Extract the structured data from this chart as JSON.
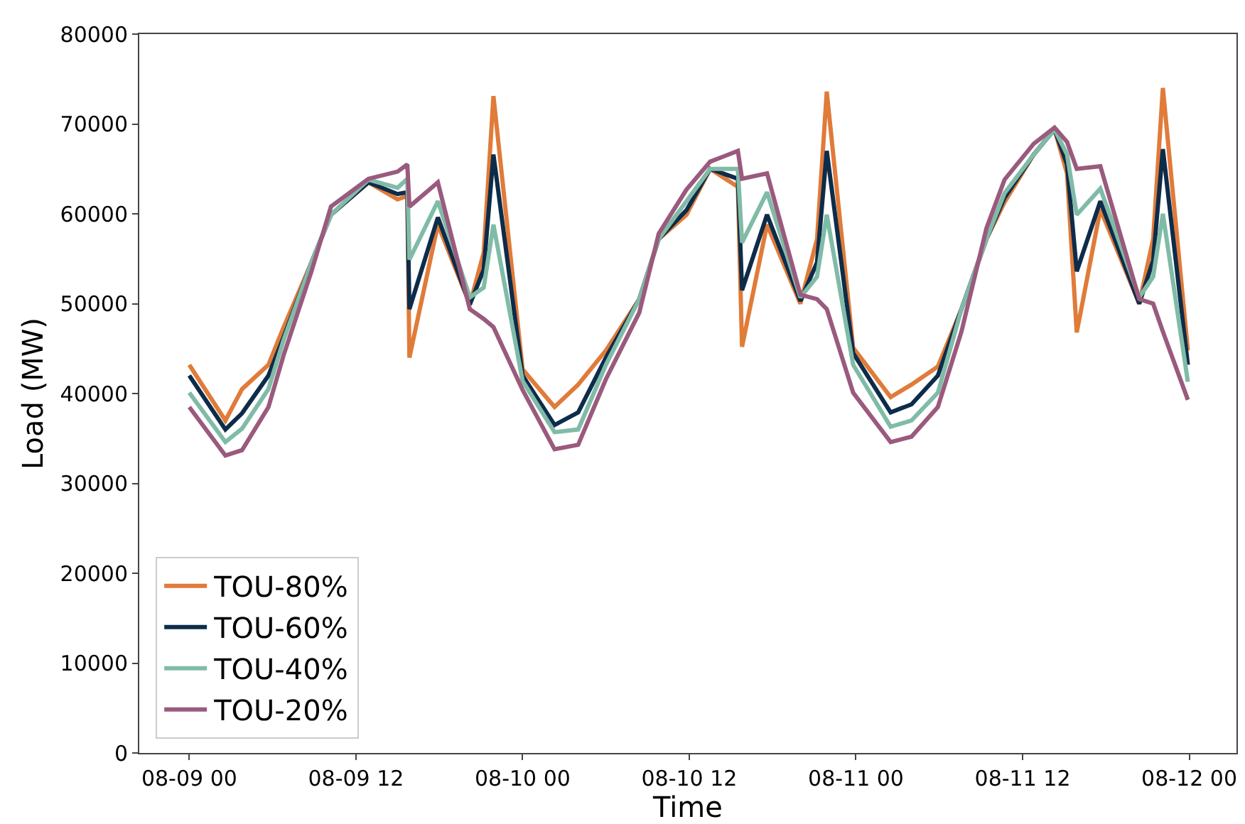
{
  "chart_data": {
    "type": "line",
    "xlabel": "Time",
    "ylabel": "Load (MW)",
    "x": [
      "--08-09T00:00",
      "--08-09T02:36",
      "--08-09T03:48",
      "--08-09T05:42",
      "--08-09T06:48",
      "--08-09T08:48",
      "--08-09T10:12",
      "--08-09T12:54",
      "--08-09T15:00",
      "--08-09T15:42",
      "--08-09T15:51",
      "--08-09T17:54",
      "--08-09T20:12",
      "--08-09T21:12",
      "--08-09T21:54",
      "--08-10T00:00",
      "--08-10T02:18",
      "--08-10T04:00",
      "--08-10T06:00",
      "--08-10T08:24",
      "--08-10T09:48",
      "--08-10T11:48",
      "--08-10T13:30",
      "--08-10T15:30",
      "--08-10T15:48",
      "--08-10T17:36",
      "--08-10T20:00",
      "--08-10T21:12",
      "--08-10T21:54",
      "--08-10T23:48",
      "--08-11T02:30",
      "--08-11T04:00",
      "--08-11T05:54",
      "--08-11T07:36",
      "--08-11T09:24",
      "--08-11T10:42",
      "--08-11T12:48",
      "--08-11T14:18",
      "--08-11T15:12",
      "--08-11T15:54",
      "--08-11T17:36",
      "--08-11T20:24",
      "--08-11T21:24",
      "--08-11T22:06",
      "--08-11T23:54"
    ],
    "series": [
      {
        "name": "TOU-80%",
        "color": "#e07b39",
        "values": [
          43200,
          37000,
          40500,
          43200,
          47400,
          54600,
          59900,
          63500,
          61600,
          62000,
          44000,
          58800,
          49900,
          55700,
          73100,
          42700,
          38500,
          41000,
          44800,
          50500,
          57200,
          59900,
          65000,
          63000,
          45200,
          58800,
          50000,
          57200,
          73600,
          45100,
          39600,
          41000,
          43000,
          49400,
          57200,
          61300,
          66600,
          69400,
          64500,
          46800,
          60500,
          50000,
          57200,
          74000,
          44800
        ]
      },
      {
        "name": "TOU-60%",
        "color": "#0d2c4a",
        "values": [
          42000,
          36000,
          37800,
          42000,
          46300,
          54600,
          59900,
          63500,
          62200,
          62400,
          49400,
          59600,
          49900,
          53800,
          66600,
          42000,
          36500,
          37900,
          44000,
          50500,
          57200,
          60400,
          65000,
          63900,
          51500,
          59900,
          50300,
          54600,
          67000,
          44500,
          37900,
          38800,
          42000,
          49400,
          57200,
          61800,
          66600,
          69400,
          65500,
          53600,
          61400,
          50000,
          54800,
          67200,
          43200
        ]
      },
      {
        "name": "TOU-40%",
        "color": "#80bba8",
        "values": [
          40100,
          34600,
          36100,
          40500,
          46000,
          54600,
          59900,
          63800,
          62900,
          63900,
          54900,
          61400,
          50700,
          51800,
          58800,
          41400,
          35700,
          36000,
          43200,
          50500,
          57200,
          61400,
          65000,
          65000,
          56800,
          62400,
          50700,
          53000,
          59900,
          43200,
          36300,
          37000,
          40100,
          49400,
          57200,
          62300,
          66600,
          69400,
          66600,
          59900,
          62800,
          50700,
          53000,
          60000,
          41300
        ]
      },
      {
        "name": "TOU-20%",
        "color": "#9a5a7d",
        "values": [
          38500,
          33100,
          33700,
          38500,
          44300,
          53600,
          60800,
          63900,
          64700,
          65500,
          60800,
          63500,
          49400,
          48300,
          47400,
          40400,
          33800,
          34300,
          41600,
          49000,
          57800,
          62700,
          65800,
          67000,
          63900,
          64500,
          51000,
          50500,
          49400,
          40100,
          34600,
          35200,
          38500,
          46900,
          58400,
          63800,
          67800,
          69600,
          68000,
          65000,
          65300,
          50500,
          50000,
          46900,
          39300
        ]
      }
    ],
    "xlim": [
      "--08-08T20:24",
      "--08-12T03:24"
    ],
    "xticks": [
      {
        "value": "--08-09T00:00",
        "label": "08-09 00"
      },
      {
        "value": "--08-09T12:00",
        "label": "08-09 12"
      },
      {
        "value": "--08-10T00:00",
        "label": "08-10 00"
      },
      {
        "value": "--08-10T12:00",
        "label": "08-10 12"
      },
      {
        "value": "--08-11T00:00",
        "label": "08-11 00"
      },
      {
        "value": "--08-11T12:00",
        "label": "08-11 12"
      },
      {
        "value": "--08-12T00:00",
        "label": "08-12 00"
      }
    ],
    "ylim": [
      0,
      80000
    ],
    "yticks": [
      0,
      10000,
      20000,
      30000,
      40000,
      50000,
      60000,
      70000,
      80000
    ],
    "grid": false,
    "legend": "bottom left",
    "marker": "none",
    "line_style": "solid"
  }
}
